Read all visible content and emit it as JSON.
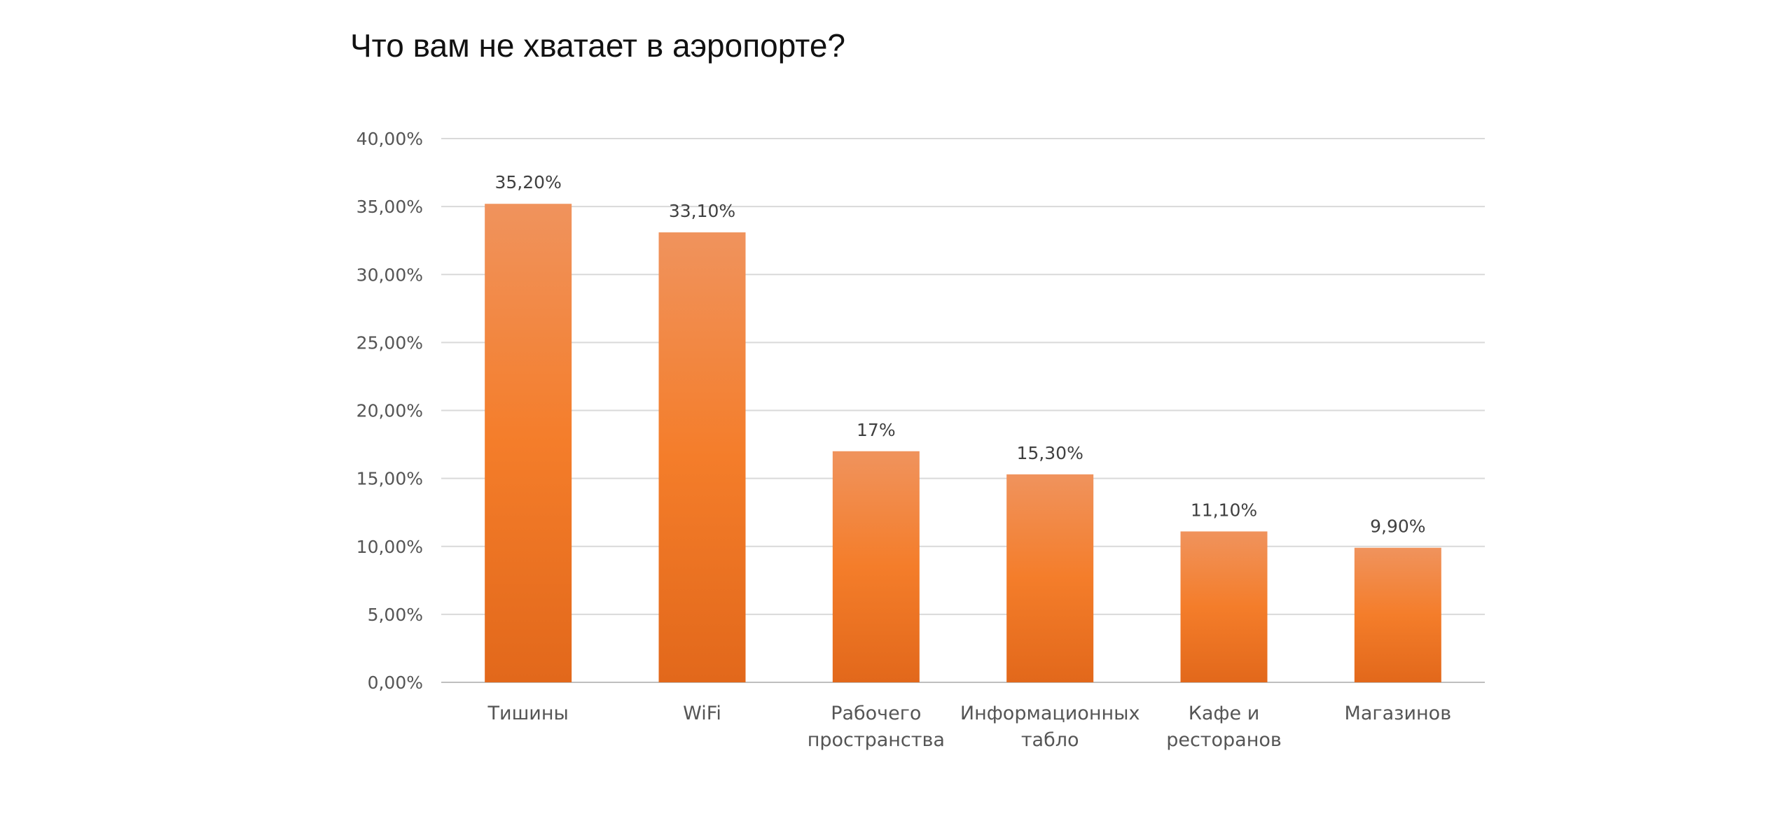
{
  "chart_data": {
    "type": "bar",
    "title": "Что вам не хватает в аэропорте?",
    "categories": [
      [
        "Тишины"
      ],
      [
        "WiFi"
      ],
      [
        "Рабочего",
        "пространства"
      ],
      [
        "Информационных",
        "табло"
      ],
      [
        "Кафе и",
        "ресторанов"
      ],
      [
        "Магазинов"
      ]
    ],
    "values": [
      35.2,
      33.1,
      17,
      15.3,
      11.1,
      9.9
    ],
    "data_labels": [
      "35,20%",
      "33,10%",
      "17%",
      "15,30%",
      "11,10%",
      "9,90%"
    ],
    "ylim": [
      0,
      40
    ],
    "yticks": [
      0,
      5,
      10,
      15,
      20,
      25,
      30,
      35,
      40
    ],
    "ytick_labels": [
      "0,00%",
      "5,00%",
      "10,00%",
      "15,00%",
      "20,00%",
      "25,00%",
      "30,00%",
      "35,00%",
      "40,00%"
    ],
    "grid": true,
    "legend": "none",
    "colors": {
      "bar_top": "#f0935d",
      "bar_mid": "#f47d2a",
      "bar_bottom": "#e2681b",
      "grid": "#d9d9d9",
      "axis": "#bfbfbf"
    }
  }
}
